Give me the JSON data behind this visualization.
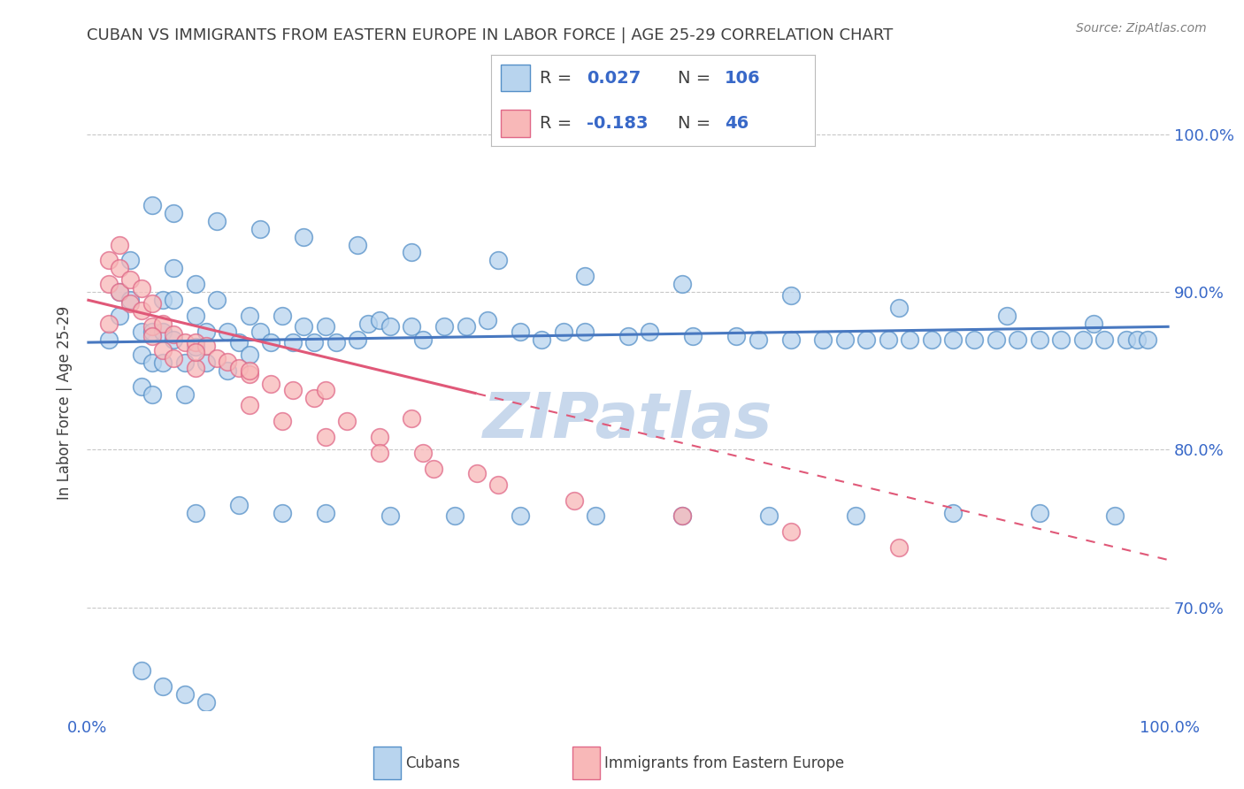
{
  "title": "CUBAN VS IMMIGRANTS FROM EASTERN EUROPE IN LABOR FORCE | AGE 25-29 CORRELATION CHART",
  "source": "Source: ZipAtlas.com",
  "ylabel": "In Labor Force | Age 25-29",
  "xlim": [
    0.0,
    1.0
  ],
  "ylim": [
    0.635,
    1.025
  ],
  "ytick_vals": [
    0.7,
    0.8,
    0.9,
    1.0
  ],
  "ytick_labels": [
    "70.0%",
    "80.0%",
    "90.0%",
    "100.0%"
  ],
  "legend1_r": "0.027",
  "legend1_n": "106",
  "legend2_r": "-0.183",
  "legend2_n": "46",
  "legend1_label": "Cubans",
  "legend2_label": "Immigrants from Eastern Europe",
  "blue_face": "#b8d4ee",
  "blue_edge": "#5590c8",
  "pink_face": "#f8b8b8",
  "pink_edge": "#e06888",
  "blue_line": "#4878c0",
  "pink_line": "#e05878",
  "text_blue": "#3868c8",
  "watermark_color": "#c8d8ec",
  "grid_color": "#c8c8c8",
  "title_color": "#404040",
  "source_color": "#808080",
  "cubans_x": [
    0.02,
    0.03,
    0.03,
    0.04,
    0.04,
    0.05,
    0.05,
    0.05,
    0.06,
    0.06,
    0.06,
    0.07,
    0.07,
    0.07,
    0.08,
    0.08,
    0.08,
    0.09,
    0.09,
    0.1,
    0.1,
    0.1,
    0.11,
    0.11,
    0.12,
    0.13,
    0.13,
    0.14,
    0.15,
    0.15,
    0.16,
    0.17,
    0.18,
    0.19,
    0.2,
    0.21,
    0.22,
    0.23,
    0.25,
    0.26,
    0.27,
    0.28,
    0.3,
    0.31,
    0.33,
    0.35,
    0.37,
    0.4,
    0.42,
    0.44,
    0.46,
    0.5,
    0.52,
    0.56,
    0.6,
    0.62,
    0.65,
    0.68,
    0.7,
    0.72,
    0.74,
    0.76,
    0.78,
    0.8,
    0.82,
    0.84,
    0.86,
    0.88,
    0.9,
    0.92,
    0.94,
    0.96,
    0.97,
    0.98,
    0.1,
    0.14,
    0.18,
    0.22,
    0.28,
    0.34,
    0.4,
    0.47,
    0.55,
    0.63,
    0.71,
    0.8,
    0.88,
    0.95,
    0.06,
    0.08,
    0.12,
    0.16,
    0.2,
    0.25,
    0.3,
    0.38,
    0.46,
    0.55,
    0.65,
    0.75,
    0.85,
    0.93,
    0.05,
    0.07,
    0.09,
    0.11
  ],
  "cubans_y": [
    0.87,
    0.9,
    0.885,
    0.92,
    0.895,
    0.875,
    0.86,
    0.84,
    0.875,
    0.855,
    0.835,
    0.895,
    0.875,
    0.855,
    0.915,
    0.895,
    0.87,
    0.855,
    0.835,
    0.905,
    0.885,
    0.865,
    0.875,
    0.855,
    0.895,
    0.875,
    0.85,
    0.868,
    0.885,
    0.86,
    0.875,
    0.868,
    0.885,
    0.868,
    0.878,
    0.868,
    0.878,
    0.868,
    0.87,
    0.88,
    0.882,
    0.878,
    0.878,
    0.87,
    0.878,
    0.878,
    0.882,
    0.875,
    0.87,
    0.875,
    0.875,
    0.872,
    0.875,
    0.872,
    0.872,
    0.87,
    0.87,
    0.87,
    0.87,
    0.87,
    0.87,
    0.87,
    0.87,
    0.87,
    0.87,
    0.87,
    0.87,
    0.87,
    0.87,
    0.87,
    0.87,
    0.87,
    0.87,
    0.87,
    0.76,
    0.765,
    0.76,
    0.76,
    0.758,
    0.758,
    0.758,
    0.758,
    0.758,
    0.758,
    0.758,
    0.76,
    0.76,
    0.758,
    0.955,
    0.95,
    0.945,
    0.94,
    0.935,
    0.93,
    0.925,
    0.92,
    0.91,
    0.905,
    0.898,
    0.89,
    0.885,
    0.88,
    0.66,
    0.65,
    0.645,
    0.64
  ],
  "eastern_x": [
    0.02,
    0.02,
    0.03,
    0.03,
    0.03,
    0.04,
    0.04,
    0.05,
    0.05,
    0.06,
    0.06,
    0.07,
    0.07,
    0.08,
    0.08,
    0.09,
    0.1,
    0.1,
    0.11,
    0.12,
    0.13,
    0.14,
    0.15,
    0.17,
    0.19,
    0.21,
    0.24,
    0.27,
    0.31,
    0.36,
    0.15,
    0.18,
    0.22,
    0.27,
    0.32,
    0.38,
    0.45,
    0.55,
    0.65,
    0.75,
    0.02,
    0.06,
    0.1,
    0.15,
    0.22,
    0.3
  ],
  "eastern_y": [
    0.92,
    0.905,
    0.93,
    0.915,
    0.9,
    0.908,
    0.893,
    0.902,
    0.888,
    0.893,
    0.878,
    0.88,
    0.863,
    0.873,
    0.858,
    0.868,
    0.868,
    0.852,
    0.866,
    0.858,
    0.856,
    0.852,
    0.848,
    0.842,
    0.838,
    0.833,
    0.818,
    0.808,
    0.798,
    0.785,
    0.828,
    0.818,
    0.808,
    0.798,
    0.788,
    0.778,
    0.768,
    0.758,
    0.748,
    0.738,
    0.88,
    0.872,
    0.862,
    0.85,
    0.838,
    0.82
  ],
  "blue_trend_x": [
    0.0,
    1.0
  ],
  "blue_trend_y": [
    0.868,
    0.878
  ],
  "pink_trend_x0": 0.0,
  "pink_trend_x1": 1.0,
  "pink_trend_y0": 0.895,
  "pink_trend_y1": 0.73
}
